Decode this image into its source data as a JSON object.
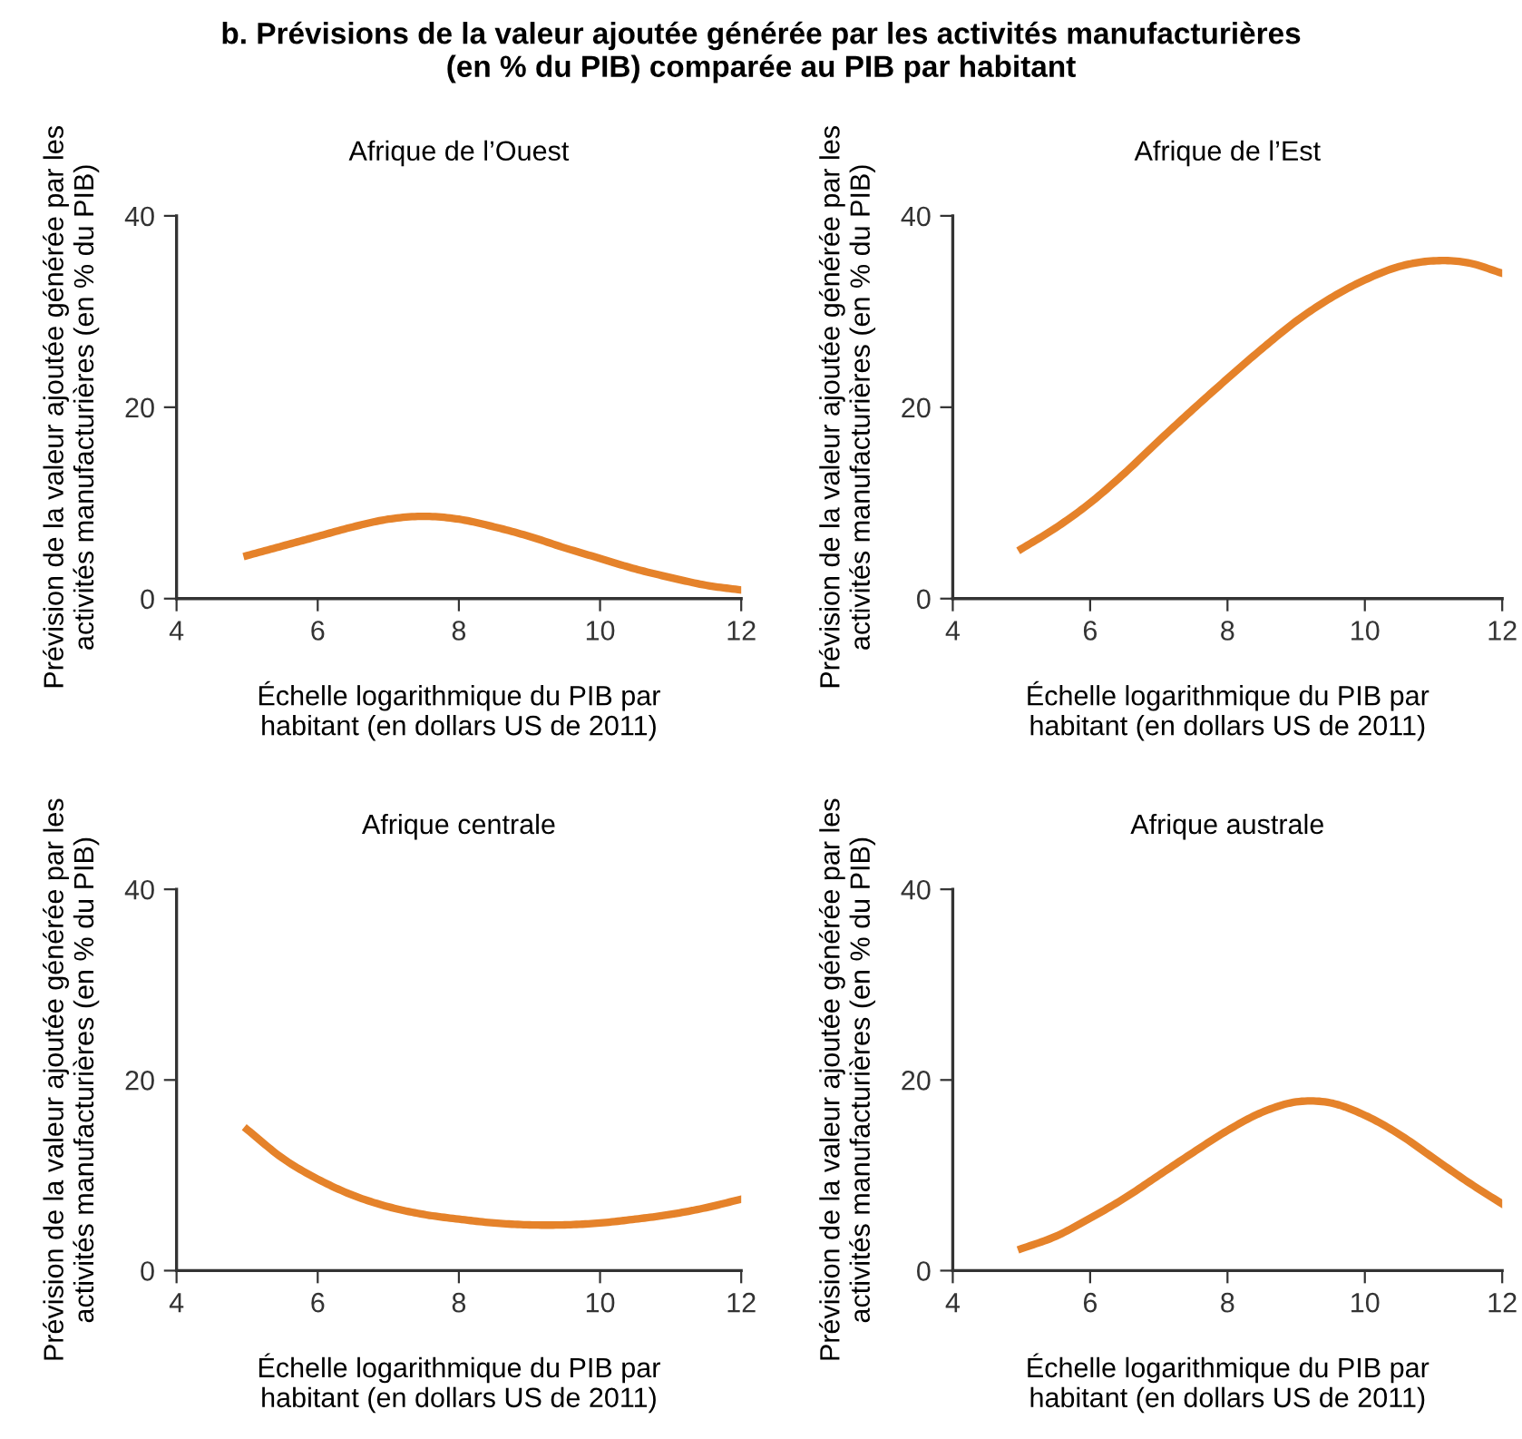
{
  "chart_data": [
    {
      "type": "line",
      "title": "Afrique de l’Ouest",
      "xlabel": "Échelle logarithmique du PIB par\nhabitant (en dollars US de 2011)",
      "ylabel": "Prévision de la valeur ajoutée générée par les\nactivités manufacturières (en % du PIB)",
      "annotations": [
        "b. Prévisions de la valeur ajoutée générée par les activités manufacturières\n(en % du PIB) comparée au PIB par habitant"
      ],
      "series": [
        {
          "color": "#e5822a",
          "x": [
            5,
            5.5,
            6,
            6.5,
            7,
            7.5,
            8,
            8.5,
            9,
            9.5,
            10,
            10.5,
            11,
            11.5,
            12
          ],
          "values": [
            4.5,
            5.5,
            6.5,
            7.5,
            8.3,
            8.6,
            8.3,
            7.5,
            6.5,
            5.3,
            4.2,
            3.1,
            2.2,
            1.4,
            0.9
          ]
        }
      ],
      "xlim": [
        4,
        12
      ],
      "ylim": [
        0,
        40
      ],
      "xticks": [
        4,
        6,
        8,
        10,
        12
      ],
      "yticks": [
        0,
        20,
        40
      ],
      "grid": false
    },
    {
      "type": "line",
      "title": "Afrique de l’Est",
      "xlabel": "Échelle logarithmique du PIB par\nhabitant (en dollars US de 2011)",
      "ylabel": "Prévision de la valeur ajoutée générée par les\nactivités manufacturières (en % du PIB)",
      "series": [
        {
          "color": "#e5822a",
          "x": [
            5,
            5.5,
            6,
            6.5,
            7,
            7.5,
            8,
            8.5,
            9,
            9.5,
            10,
            10.5,
            11,
            11.5,
            12
          ],
          "values": [
            5.2,
            7.4,
            10,
            13.1,
            16.5,
            19.8,
            23,
            26.1,
            29,
            31.4,
            33.3,
            34.7,
            35.3,
            35.1,
            34
          ]
        }
      ],
      "xlim": [
        4,
        12
      ],
      "ylim": [
        0,
        40
      ],
      "xticks": [
        4,
        6,
        8,
        10,
        12
      ],
      "yticks": [
        0,
        20,
        40
      ],
      "grid": false
    },
    {
      "type": "line",
      "title": "Afrique centrale",
      "xlabel": "Échelle logarithmique du PIB par\nhabitant (en dollars US de 2011)",
      "ylabel": "Prévision de la valeur ajoutée générée par les\nactivités manufacturières (en % du PIB)",
      "series": [
        {
          "color": "#e5822a",
          "x": [
            5,
            5.5,
            6,
            6.5,
            7,
            7.5,
            8,
            8.5,
            9,
            9.5,
            10,
            10.5,
            11,
            11.5,
            12
          ],
          "values": [
            14.8,
            11.8,
            9.6,
            7.9,
            6.7,
            5.9,
            5.4,
            5.0,
            4.8,
            4.8,
            5.0,
            5.4,
            5.9,
            6.6,
            7.5
          ]
        }
      ],
      "xlim": [
        4,
        12
      ],
      "ylim": [
        0,
        40
      ],
      "xticks": [
        4,
        6,
        8,
        10,
        12
      ],
      "yticks": [
        0,
        20,
        40
      ],
      "grid": false
    },
    {
      "type": "line",
      "title": "Afrique australe",
      "xlabel": "Échelle logarithmique du PIB par\nhabitant (en dollars US de 2011)",
      "ylabel": "Prévision de la valeur ajoutée générée par les\nactivités manufacturières (en % du PIB)",
      "series": [
        {
          "color": "#e5822a",
          "x": [
            5,
            5.5,
            6,
            6.5,
            7,
            7.5,
            8,
            8.5,
            9,
            9.5,
            10,
            10.5,
            11,
            11.5,
            12
          ],
          "values": [
            2.3,
            3.6,
            5.5,
            7.6,
            10,
            12.4,
            14.7,
            16.6,
            17.7,
            17.6,
            16.3,
            14.3,
            11.8,
            9.3,
            7
          ]
        }
      ],
      "xlim": [
        4,
        12
      ],
      "ylim": [
        0,
        40
      ],
      "xticks": [
        4,
        6,
        8,
        10,
        12
      ],
      "yticks": [
        0,
        20,
        40
      ],
      "grid": false
    }
  ]
}
